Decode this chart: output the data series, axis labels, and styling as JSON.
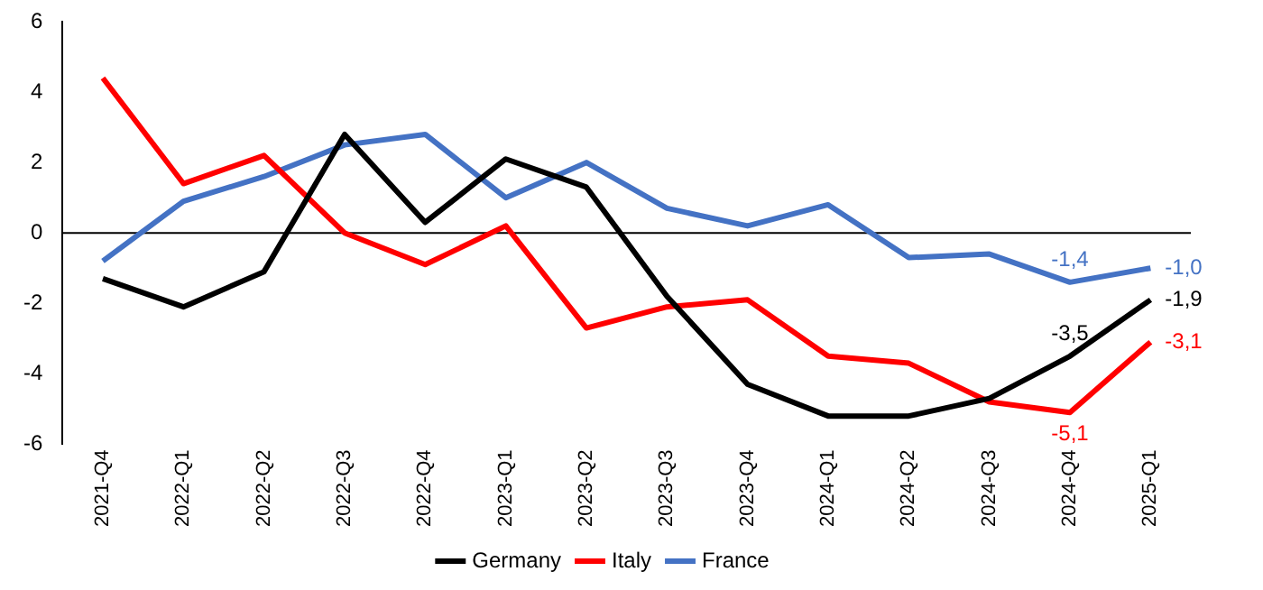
{
  "chart_data": {
    "type": "line",
    "categories": [
      "2021-Q4",
      "2022-Q1",
      "2022-Q2",
      "2022-Q3",
      "2022-Q4",
      "2023-Q1",
      "2023-Q2",
      "2023-Q3",
      "2023-Q4",
      "2024-Q1",
      "2024-Q2",
      "2024-Q3",
      "2024-Q4",
      "2025-Q1"
    ],
    "series": [
      {
        "name": "Germany",
        "color": "#000000",
        "values": [
          -1.3,
          -2.1,
          -1.1,
          2.8,
          0.3,
          2.1,
          1.3,
          -1.8,
          -4.3,
          -5.2,
          -5.2,
          -4.7,
          -3.5,
          -1.9
        ],
        "value_labels": [
          null,
          null,
          null,
          null,
          null,
          null,
          null,
          null,
          null,
          null,
          null,
          null,
          "-3,5",
          "-1,9"
        ]
      },
      {
        "name": "Italy",
        "color": "#ff0000",
        "values": [
          4.4,
          1.4,
          2.2,
          0.0,
          -0.9,
          0.2,
          -2.7,
          -2.1,
          -1.9,
          -3.5,
          -3.7,
          -4.8,
          -5.1,
          -3.1
        ],
        "value_labels": [
          null,
          null,
          null,
          null,
          null,
          null,
          null,
          null,
          null,
          null,
          null,
          null,
          "-5,1",
          "-3,1"
        ]
      },
      {
        "name": "France",
        "color": "#4472c4",
        "values": [
          -0.8,
          0.9,
          1.6,
          2.5,
          2.8,
          1.0,
          2.0,
          0.7,
          0.2,
          0.8,
          -0.7,
          -0.6,
          -1.4,
          -1.0
        ],
        "value_labels": [
          null,
          null,
          null,
          null,
          null,
          null,
          null,
          null,
          null,
          null,
          null,
          null,
          "-1,4",
          "-1,0"
        ]
      }
    ],
    "ref_lines": [
      {
        "axis": "y",
        "value": 0,
        "color": "#000000",
        "line_style": "solid"
      }
    ],
    "ylim": [
      -6,
      6
    ],
    "yticks": [
      -6,
      -4,
      -2,
      0,
      2,
      4,
      6
    ],
    "grid": false,
    "legend": "bottom",
    "marker": "none",
    "line_style": "solid"
  }
}
